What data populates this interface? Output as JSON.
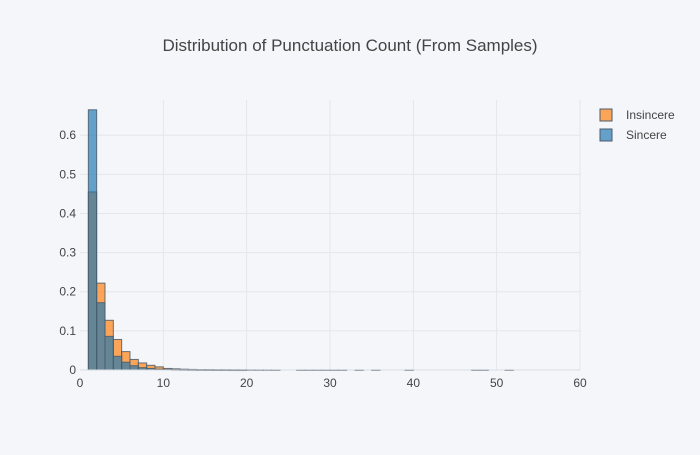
{
  "chart_data": {
    "type": "histogram",
    "title": "Distribution of Punctuation Count (From Samples)",
    "xlabel": "",
    "ylabel": "",
    "bin_width": 1,
    "xlim": [
      0,
      60
    ],
    "ylim": [
      0,
      0.69
    ],
    "x_ticks": [
      0,
      10,
      20,
      30,
      40,
      50,
      60
    ],
    "y_ticks": [
      0,
      0.1,
      0.2,
      0.3,
      0.4,
      0.5,
      0.6
    ],
    "barmode": "overlay",
    "grid": true,
    "legend_position": "top-right",
    "series": [
      {
        "name": "Insincere",
        "color": "#ff7f0e",
        "bins": [
          {
            "x0": 0,
            "x1": 1,
            "y": 0.0
          },
          {
            "x0": 1,
            "x1": 2,
            "y": 0.455
          },
          {
            "x0": 2,
            "x1": 3,
            "y": 0.222
          },
          {
            "x0": 3,
            "x1": 4,
            "y": 0.127
          },
          {
            "x0": 4,
            "x1": 5,
            "y": 0.078
          },
          {
            "x0": 5,
            "x1": 6,
            "y": 0.047
          },
          {
            "x0": 6,
            "x1": 7,
            "y": 0.027
          },
          {
            "x0": 7,
            "x1": 8,
            "y": 0.018
          },
          {
            "x0": 8,
            "x1": 9,
            "y": 0.012
          },
          {
            "x0": 9,
            "x1": 10,
            "y": 0.008
          },
          {
            "x0": 10,
            "x1": 11,
            "y": 0.004
          },
          {
            "x0": 11,
            "x1": 12,
            "y": 0.003
          },
          {
            "x0": 12,
            "x1": 13,
            "y": 0.002
          },
          {
            "x0": 13,
            "x1": 14,
            "y": 0.0015
          },
          {
            "x0": 14,
            "x1": 15,
            "y": 0.001
          },
          {
            "x0": 15,
            "x1": 16,
            "y": 0.001
          },
          {
            "x0": 16,
            "x1": 17,
            "y": 0.0008
          },
          {
            "x0": 17,
            "x1": 18,
            "y": 0.0007
          },
          {
            "x0": 18,
            "x1": 19,
            "y": 0.0006
          },
          {
            "x0": 19,
            "x1": 20,
            "y": 0.0005
          },
          {
            "x0": 20,
            "x1": 21,
            "y": 0.0005
          },
          {
            "x0": 21,
            "x1": 22,
            "y": 0.0004
          },
          {
            "x0": 22,
            "x1": 23,
            "y": 0.0004
          },
          {
            "x0": 23,
            "x1": 24,
            "y": 0.0003
          },
          {
            "x0": 26,
            "x1": 27,
            "y": 0.0003
          },
          {
            "x0": 27,
            "x1": 28,
            "y": 0.0003
          },
          {
            "x0": 28,
            "x1": 29,
            "y": 0.0003
          },
          {
            "x0": 29,
            "x1": 30,
            "y": 0.0003
          },
          {
            "x0": 30,
            "x1": 31,
            "y": 0.0003
          },
          {
            "x0": 31,
            "x1": 32,
            "y": 0.0003
          },
          {
            "x0": 33,
            "x1": 34,
            "y": 0.0003
          },
          {
            "x0": 35,
            "x1": 36,
            "y": 0.0003
          },
          {
            "x0": 39,
            "x1": 40,
            "y": 0.0003
          },
          {
            "x0": 47,
            "x1": 48,
            "y": 0.0003
          },
          {
            "x0": 48,
            "x1": 49,
            "y": 0.0003
          },
          {
            "x0": 51,
            "x1": 52,
            "y": 0.0003
          }
        ]
      },
      {
        "name": "Sincere",
        "color": "#1f77b4",
        "bins": [
          {
            "x0": 0,
            "x1": 1,
            "y": 0.0
          },
          {
            "x0": 1,
            "x1": 2,
            "y": 0.665
          },
          {
            "x0": 2,
            "x1": 3,
            "y": 0.172
          },
          {
            "x0": 3,
            "x1": 4,
            "y": 0.086
          },
          {
            "x0": 4,
            "x1": 5,
            "y": 0.035
          },
          {
            "x0": 5,
            "x1": 6,
            "y": 0.02
          },
          {
            "x0": 6,
            "x1": 7,
            "y": 0.011
          },
          {
            "x0": 7,
            "x1": 8,
            "y": 0.006
          },
          {
            "x0": 8,
            "x1": 9,
            "y": 0.004
          },
          {
            "x0": 9,
            "x1": 10,
            "y": 0.002
          },
          {
            "x0": 10,
            "x1": 11,
            "y": 0.0015
          },
          {
            "x0": 11,
            "x1": 12,
            "y": 0.001
          },
          {
            "x0": 12,
            "x1": 13,
            "y": 0.0008
          },
          {
            "x0": 13,
            "x1": 14,
            "y": 0.0006
          },
          {
            "x0": 14,
            "x1": 15,
            "y": 0.0005
          },
          {
            "x0": 15,
            "x1": 16,
            "y": 0.0004
          },
          {
            "x0": 16,
            "x1": 17,
            "y": 0.0003
          },
          {
            "x0": 17,
            "x1": 18,
            "y": 0.0003
          },
          {
            "x0": 18,
            "x1": 19,
            "y": 0.0002
          },
          {
            "x0": 19,
            "x1": 20,
            "y": 0.0002
          }
        ]
      }
    ]
  }
}
